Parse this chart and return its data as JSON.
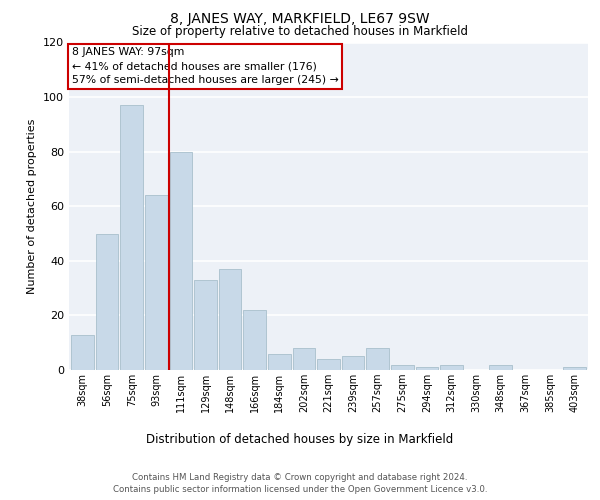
{
  "title": "8, JANES WAY, MARKFIELD, LE67 9SW",
  "subtitle": "Size of property relative to detached houses in Markfield",
  "xlabel": "Distribution of detached houses by size in Markfield",
  "ylabel": "Number of detached properties",
  "categories": [
    "38sqm",
    "56sqm",
    "75sqm",
    "93sqm",
    "111sqm",
    "129sqm",
    "148sqm",
    "166sqm",
    "184sqm",
    "202sqm",
    "221sqm",
    "239sqm",
    "257sqm",
    "275sqm",
    "294sqm",
    "312sqm",
    "330sqm",
    "348sqm",
    "367sqm",
    "385sqm",
    "403sqm"
  ],
  "values": [
    13,
    50,
    97,
    64,
    80,
    33,
    37,
    22,
    6,
    8,
    4,
    5,
    8,
    2,
    1,
    2,
    0,
    2,
    0,
    0,
    1
  ],
  "bar_color": "#c8d9e8",
  "bar_edge_color": "#a8bfcc",
  "vline_x": 3.5,
  "vline_color": "#cc0000",
  "annotation_text": "8 JANES WAY: 97sqm\n← 41% of detached houses are smaller (176)\n57% of semi-detached houses are larger (245) →",
  "annotation_box_color": "#cc0000",
  "ylim": [
    0,
    120
  ],
  "yticks": [
    0,
    20,
    40,
    60,
    80,
    100,
    120
  ],
  "background_color": "#edf1f7",
  "grid_color": "#ffffff",
  "footer_line1": "Contains HM Land Registry data © Crown copyright and database right 2024.",
  "footer_line2": "Contains public sector information licensed under the Open Government Licence v3.0."
}
